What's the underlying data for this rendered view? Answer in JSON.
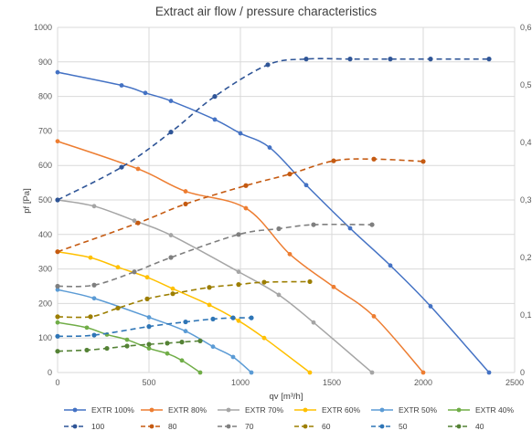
{
  "chart_data": {
    "type": "line",
    "title": "Extract air flow / pressure characteristics",
    "xlabel": "qv [m³/h]",
    "ylabel": "pf [Pa]",
    "xlim": [
      0,
      2500
    ],
    "ylim": [
      0,
      1000
    ],
    "y2lim": [
      0,
      0.6
    ],
    "grid": true,
    "legend": "bottom",
    "x_ticks": [
      "0",
      "500",
      "1000",
      "1500",
      "2000",
      "2500"
    ],
    "y_ticks": [
      "0",
      "100",
      "200",
      "300",
      "400",
      "500",
      "600",
      "700",
      "800",
      "900",
      "1000"
    ],
    "y2_ticks": [
      "0",
      "0,1",
      "0,2",
      "0,3",
      "0,4",
      "0,5",
      "0,6"
    ],
    "series": [
      {
        "name": "EXTR 100%",
        "axis": "left",
        "style": "solid",
        "color": "#4472C4",
        "points": [
          [
            0,
            870
          ],
          [
            350,
            832
          ],
          [
            480,
            810
          ],
          [
            620,
            787
          ],
          [
            860,
            733
          ],
          [
            1000,
            693
          ],
          [
            1160,
            652
          ],
          [
            1360,
            543
          ],
          [
            1600,
            418
          ],
          [
            1820,
            310
          ],
          [
            2040,
            192
          ],
          [
            2360,
            0
          ]
        ]
      },
      {
        "name": "EXTR 80%",
        "axis": "left",
        "style": "solid",
        "color": "#ED7D31",
        "points": [
          [
            0,
            670
          ],
          [
            440,
            590
          ],
          [
            700,
            525
          ],
          [
            1030,
            476
          ],
          [
            1270,
            343
          ],
          [
            1510,
            248
          ],
          [
            1730,
            163
          ],
          [
            2000,
            0
          ]
        ]
      },
      {
        "name": "EXTR 70%",
        "axis": "left",
        "style": "solid",
        "color": "#A5A5A5",
        "points": [
          [
            0,
            500
          ],
          [
            200,
            482
          ],
          [
            420,
            440
          ],
          [
            620,
            398
          ],
          [
            990,
            292
          ],
          [
            1210,
            225
          ],
          [
            1400,
            145
          ],
          [
            1720,
            0
          ]
        ]
      },
      {
        "name": "EXTR 60%",
        "axis": "left",
        "style": "solid",
        "color": "#FFC000",
        "points": [
          [
            0,
            350
          ],
          [
            180,
            333
          ],
          [
            330,
            305
          ],
          [
            490,
            276
          ],
          [
            630,
            243
          ],
          [
            830,
            196
          ],
          [
            990,
            150
          ],
          [
            1130,
            100
          ],
          [
            1380,
            0
          ]
        ]
      },
      {
        "name": "EXTR 50%",
        "axis": "left",
        "style": "solid",
        "color": "#5B9BD5",
        "points": [
          [
            0,
            240
          ],
          [
            200,
            215
          ],
          [
            500,
            160
          ],
          [
            700,
            120
          ],
          [
            850,
            75
          ],
          [
            960,
            45
          ],
          [
            1060,
            0
          ]
        ]
      },
      {
        "name": "EXTR 40%",
        "axis": "left",
        "style": "solid",
        "color": "#70AD47",
        "points": [
          [
            0,
            145
          ],
          [
            160,
            130
          ],
          [
            270,
            110
          ],
          [
            380,
            95
          ],
          [
            500,
            70
          ],
          [
            600,
            55
          ],
          [
            680,
            35
          ],
          [
            780,
            0
          ]
        ]
      },
      {
        "name": "100",
        "axis": "right",
        "style": "dashed",
        "color": "#2F5597",
        "points": [
          [
            0,
            0.3
          ],
          [
            350,
            0.357
          ],
          [
            620,
            0.418
          ],
          [
            860,
            0.48
          ],
          [
            1150,
            0.535
          ],
          [
            1360,
            0.545
          ],
          [
            1600,
            0.545
          ],
          [
            1820,
            0.545
          ],
          [
            2040,
            0.545
          ],
          [
            2360,
            0.545
          ]
        ]
      },
      {
        "name": "80",
        "axis": "right",
        "style": "dashed",
        "color": "#C55A11",
        "points": [
          [
            0,
            0.21
          ],
          [
            440,
            0.26
          ],
          [
            700,
            0.293
          ],
          [
            1030,
            0.325
          ],
          [
            1270,
            0.345
          ],
          [
            1510,
            0.368
          ],
          [
            1730,
            0.371
          ],
          [
            2000,
            0.367
          ]
        ]
      },
      {
        "name": "70",
        "axis": "right",
        "style": "dashed",
        "color": "#7F7F7F",
        "points": [
          [
            0,
            0.15
          ],
          [
            200,
            0.152
          ],
          [
            420,
            0.175
          ],
          [
            620,
            0.2
          ],
          [
            990,
            0.24
          ],
          [
            1210,
            0.25
          ],
          [
            1400,
            0.257
          ],
          [
            1720,
            0.257
          ]
        ]
      },
      {
        "name": "60",
        "axis": "right",
        "style": "dashed",
        "color": "#9C7E00",
        "points": [
          [
            0,
            0.097
          ],
          [
            180,
            0.097
          ],
          [
            330,
            0.112
          ],
          [
            490,
            0.128
          ],
          [
            630,
            0.137
          ],
          [
            830,
            0.148
          ],
          [
            990,
            0.153
          ],
          [
            1130,
            0.157
          ],
          [
            1380,
            0.158
          ]
        ]
      },
      {
        "name": "50",
        "axis": "right",
        "style": "dashed",
        "color": "#2E75B6",
        "points": [
          [
            0,
            0.063
          ],
          [
            200,
            0.065
          ],
          [
            500,
            0.08
          ],
          [
            700,
            0.088
          ],
          [
            850,
            0.093
          ],
          [
            960,
            0.095
          ],
          [
            1060,
            0.095
          ]
        ]
      },
      {
        "name": "40",
        "axis": "right",
        "style": "dashed",
        "color": "#548235",
        "points": [
          [
            0,
            0.037
          ],
          [
            160,
            0.039
          ],
          [
            270,
            0.042
          ],
          [
            380,
            0.046
          ],
          [
            500,
            0.049
          ],
          [
            600,
            0.051
          ],
          [
            680,
            0.053
          ],
          [
            780,
            0.055
          ]
        ]
      }
    ]
  }
}
